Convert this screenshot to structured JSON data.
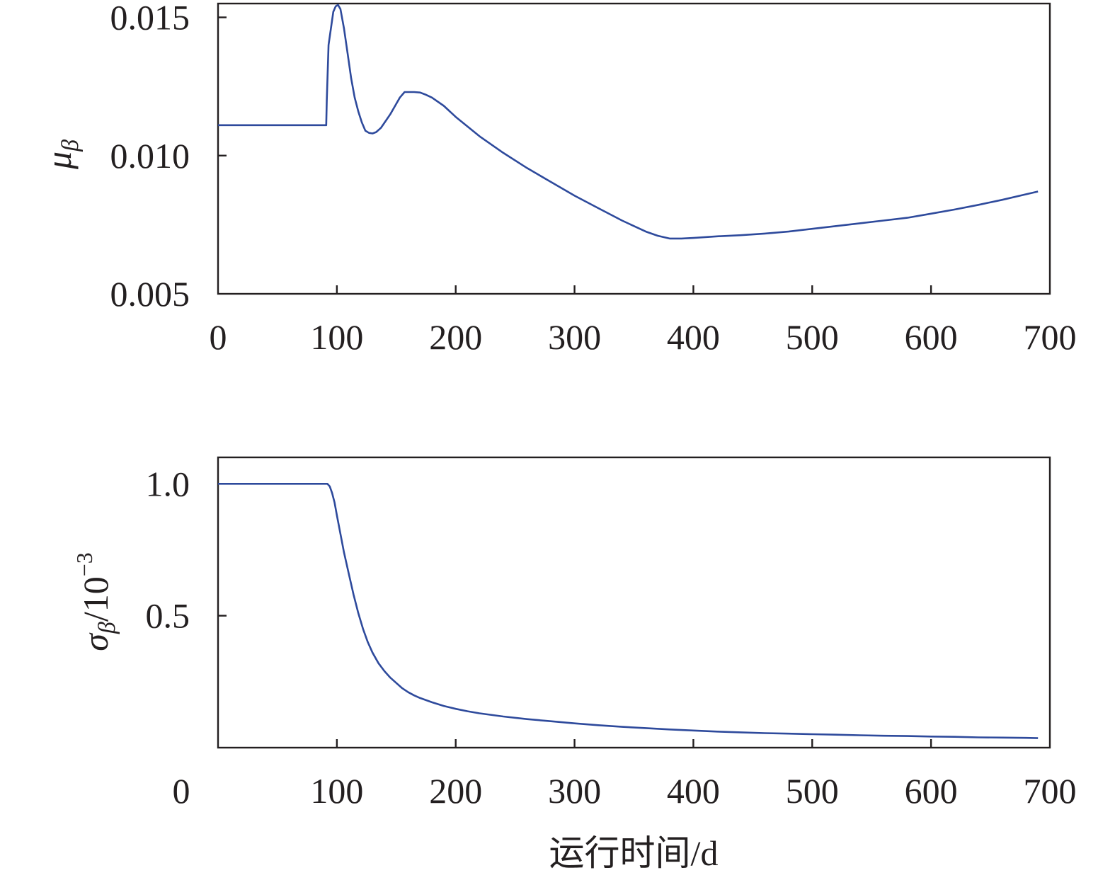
{
  "figure": {
    "xlabel": "运行时间/d",
    "line_color": "#2e4a9c"
  },
  "chart_data": [
    {
      "type": "line",
      "title": "",
      "ylabel_symbol": "μ",
      "ylabel_sub": "β",
      "xlabel": "",
      "xlim": [
        0,
        700
      ],
      "ylim": [
        0.005,
        0.0155
      ],
      "x_ticks": [
        "0",
        "100",
        "200",
        "300",
        "400",
        "500",
        "600",
        "700"
      ],
      "y_ticks": [
        "0.005",
        "0.010",
        "0.015"
      ],
      "y_tick_values": [
        0.005,
        0.01,
        0.015
      ],
      "grid": false,
      "series": [
        {
          "x": [
            0,
            91,
            91.5,
            93,
            97,
            99,
            101,
            103,
            106,
            109,
            112,
            115,
            118,
            121,
            124,
            127,
            130,
            133,
            137,
            141,
            145,
            149,
            153,
            157,
            160,
            165,
            170,
            175,
            180,
            190,
            200,
            220,
            240,
            260,
            280,
            300,
            320,
            340,
            360,
            370,
            380,
            390,
            400,
            420,
            440,
            460,
            480,
            500,
            520,
            540,
            560,
            580,
            600,
            620,
            640,
            660,
            680,
            690
          ],
          "y": [
            0.0111,
            0.0111,
            0.012,
            0.014,
            0.0152,
            0.0154,
            0.01545,
            0.0153,
            0.0146,
            0.0137,
            0.0128,
            0.0121,
            0.0116,
            0.0112,
            0.0109,
            0.01082,
            0.0108,
            0.01085,
            0.011,
            0.01125,
            0.0115,
            0.0118,
            0.0121,
            0.0123,
            0.0123,
            0.0123,
            0.01228,
            0.0122,
            0.0121,
            0.0118,
            0.0114,
            0.0107,
            0.0101,
            0.00955,
            0.00905,
            0.00855,
            0.0081,
            0.00765,
            0.00725,
            0.0071,
            0.007,
            0.007,
            0.00702,
            0.00708,
            0.00712,
            0.00718,
            0.00725,
            0.00735,
            0.00745,
            0.00755,
            0.00765,
            0.00775,
            0.0079,
            0.00805,
            0.00822,
            0.0084,
            0.0086,
            0.0087
          ]
        }
      ]
    },
    {
      "type": "line",
      "title": "",
      "ylabel_symbol": "σ",
      "ylabel_sub": "β",
      "ylabel_rest": "/10",
      "ylabel_exp": "−3",
      "xlabel": "运行时间/d",
      "xlim": [
        0,
        700
      ],
      "ylim": [
        0,
        1.1
      ],
      "x_ticks": [
        "0",
        "100",
        "200",
        "300",
        "400",
        "500",
        "600",
        "700"
      ],
      "y_ticks": [
        "0.5",
        "1.0"
      ],
      "y_tick_values": [
        0.5,
        1.0
      ],
      "grid": false,
      "series": [
        {
          "x": [
            0,
            92,
            94,
            96,
            98,
            100,
            103,
            106,
            110,
            114,
            118,
            122,
            126,
            130,
            135,
            140,
            145,
            150,
            155,
            160,
            165,
            170,
            180,
            190,
            200,
            210,
            220,
            240,
            260,
            280,
            300,
            320,
            340,
            360,
            380,
            400,
            420,
            440,
            460,
            480,
            500,
            520,
            540,
            560,
            580,
            600,
            620,
            640,
            660,
            680,
            690
          ],
          "y": [
            1.0,
            1.0,
            0.99,
            0.965,
            0.93,
            0.88,
            0.81,
            0.74,
            0.66,
            0.58,
            0.51,
            0.45,
            0.4,
            0.36,
            0.32,
            0.29,
            0.265,
            0.245,
            0.225,
            0.21,
            0.198,
            0.188,
            0.172,
            0.158,
            0.147,
            0.138,
            0.13,
            0.118,
            0.108,
            0.1,
            0.092,
            0.085,
            0.079,
            0.074,
            0.069,
            0.065,
            0.061,
            0.058,
            0.055,
            0.053,
            0.051,
            0.049,
            0.047,
            0.045,
            0.044,
            0.042,
            0.041,
            0.039,
            0.038,
            0.037,
            0.036
          ]
        }
      ]
    }
  ]
}
